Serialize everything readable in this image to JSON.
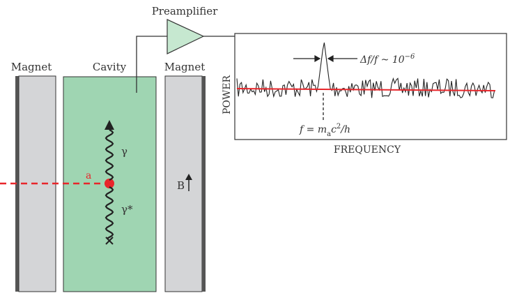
{
  "labels": {
    "preamplifier": "Preamplifier",
    "magnet_left": "Magnet",
    "cavity": "Cavity",
    "magnet_right": "Magnet",
    "axion": "a",
    "photon": "γ",
    "virtual_photon": "γ*",
    "field": "B",
    "power_axis": "POWER",
    "frequency_axis": "FREQUENCY",
    "linewidth": "Δf/f ~ 10",
    "linewidth_exp": "−6",
    "freq_formula_f": "f",
    "freq_formula_eq": " = m",
    "freq_formula_sub": "a",
    "freq_formula_c": "c",
    "freq_formula_sup": "2",
    "freq_formula_h": "/h"
  },
  "colors": {
    "magnet": "#d4d5d7",
    "magnet_edge": "#555555",
    "cavity": "#9fd5b2",
    "preamp": "#c6e8d0",
    "axion": "#e8262b",
    "baseline": "#e8262b"
  }
}
